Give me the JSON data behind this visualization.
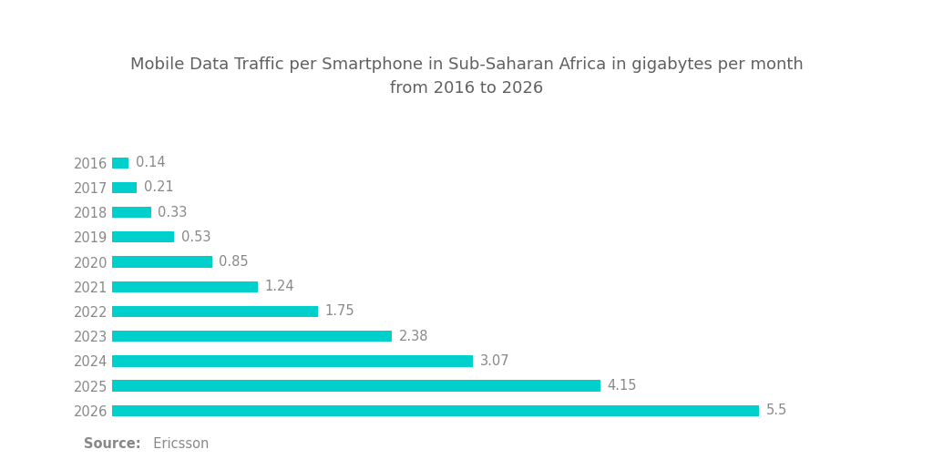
{
  "title": "Mobile Data Traffic per Smartphone in Sub-Saharan Africa in gigabytes per month\nfrom 2016 to 2026",
  "years": [
    "2016",
    "2017",
    "2018",
    "2019",
    "2020",
    "2021",
    "2022",
    "2023",
    "2024",
    "2025",
    "2026"
  ],
  "values": [
    0.14,
    0.21,
    0.33,
    0.53,
    0.85,
    1.24,
    1.75,
    2.38,
    3.07,
    4.15,
    5.5
  ],
  "bar_color": "#00D0CC",
  "label_color": "#888888",
  "title_color": "#606060",
  "source_bold": "Source:",
  "source_normal": "  Ericsson",
  "background_color": "#ffffff",
  "bar_height": 0.45,
  "xlim": [
    0,
    6.5
  ],
  "title_fontsize": 13,
  "label_fontsize": 10.5,
  "tick_fontsize": 10.5,
  "source_fontsize": 10.5
}
